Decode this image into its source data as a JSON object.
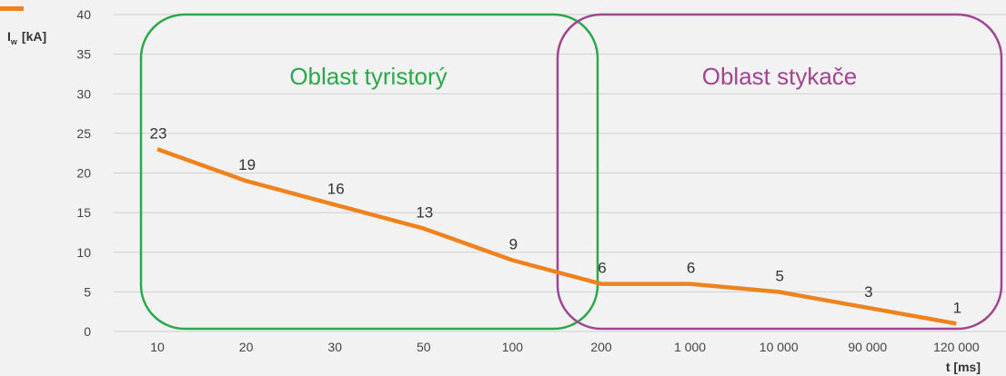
{
  "chart_data": {
    "type": "line",
    "categories": [
      "10",
      "20",
      "30",
      "50",
      "100",
      "200",
      "1 000",
      "10 000",
      "90 000",
      "120 000"
    ],
    "series": [
      {
        "values": [
          23,
          19,
          16,
          13,
          9,
          6,
          6,
          5,
          3,
          1
        ],
        "color": "#f0821e"
      }
    ],
    "data_labels": [
      "23",
      "19",
      "16",
      "13",
      "9",
      "6",
      "6",
      "5",
      "3",
      "1"
    ],
    "ylim": [
      0,
      40
    ],
    "yticks": [
      "0",
      "5",
      "10",
      "15",
      "20",
      "25",
      "30",
      "35",
      "40"
    ],
    "ylabel_main": "I",
    "ylabel_sub": "w",
    "ylabel_unit": "[kA]",
    "xlabel": "t [ms]",
    "grid": "horizontal",
    "regions": [
      {
        "label": "Oblast tyristorý",
        "color": "#2aa84a"
      },
      {
        "label": "Oblast stykače",
        "color": "#a0458f"
      }
    ]
  }
}
